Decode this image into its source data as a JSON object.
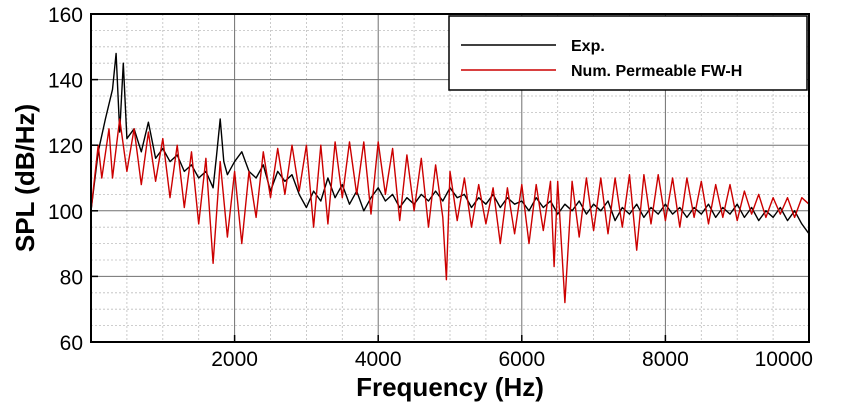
{
  "chart_data": {
    "type": "line",
    "title": "",
    "xlabel": "Frequency (Hz)",
    "ylabel": "SPL (dB/Hz)",
    "xlim": [
      0,
      10000
    ],
    "ylim": [
      60,
      160
    ],
    "x_ticks": [
      2000,
      4000,
      6000,
      8000,
      10000
    ],
    "y_ticks": [
      60,
      80,
      100,
      120,
      140,
      160
    ],
    "grid": true,
    "minor_grid": true,
    "legend_position": "top-right",
    "series": [
      {
        "name": "Exp.",
        "color": "#000000",
        "points": [
          [
            0,
            100
          ],
          [
            100,
            118
          ],
          [
            200,
            128
          ],
          [
            300,
            137
          ],
          [
            350,
            148
          ],
          [
            400,
            124
          ],
          [
            450,
            145
          ],
          [
            500,
            122
          ],
          [
            600,
            125
          ],
          [
            700,
            118
          ],
          [
            800,
            127
          ],
          [
            900,
            116
          ],
          [
            1000,
            119
          ],
          [
            1100,
            115
          ],
          [
            1200,
            117
          ],
          [
            1300,
            112
          ],
          [
            1400,
            114
          ],
          [
            1500,
            110
          ],
          [
            1600,
            112
          ],
          [
            1700,
            107
          ],
          [
            1750,
            117
          ],
          [
            1800,
            128
          ],
          [
            1850,
            115
          ],
          [
            1900,
            111
          ],
          [
            2000,
            115
          ],
          [
            2100,
            118
          ],
          [
            2200,
            112
          ],
          [
            2300,
            110
          ],
          [
            2400,
            114
          ],
          [
            2500,
            106
          ],
          [
            2600,
            112
          ],
          [
            2700,
            109
          ],
          [
            2800,
            111
          ],
          [
            2900,
            105
          ],
          [
            3000,
            101
          ],
          [
            3100,
            106
          ],
          [
            3200,
            103
          ],
          [
            3300,
            110
          ],
          [
            3400,
            104
          ],
          [
            3500,
            108
          ],
          [
            3600,
            102
          ],
          [
            3700,
            106
          ],
          [
            3800,
            100
          ],
          [
            3900,
            104
          ],
          [
            4000,
            107
          ],
          [
            4100,
            103
          ],
          [
            4200,
            105
          ],
          [
            4300,
            101
          ],
          [
            4400,
            104
          ],
          [
            4500,
            102
          ],
          [
            4600,
            105
          ],
          [
            4700,
            103
          ],
          [
            4800,
            106
          ],
          [
            4900,
            103
          ],
          [
            5000,
            107
          ],
          [
            5100,
            104
          ],
          [
            5200,
            105
          ],
          [
            5300,
            101
          ],
          [
            5400,
            104
          ],
          [
            5500,
            102
          ],
          [
            5600,
            105
          ],
          [
            5700,
            101
          ],
          [
            5800,
            104
          ],
          [
            5900,
            102
          ],
          [
            6000,
            103
          ],
          [
            6100,
            100
          ],
          [
            6200,
            104
          ],
          [
            6300,
            101
          ],
          [
            6400,
            103
          ],
          [
            6500,
            99
          ],
          [
            6600,
            102
          ],
          [
            6700,
            100
          ],
          [
            6800,
            103
          ],
          [
            6900,
            99
          ],
          [
            7000,
            102
          ],
          [
            7100,
            100
          ],
          [
            7200,
            103
          ],
          [
            7300,
            97
          ],
          [
            7400,
            101
          ],
          [
            7500,
            99
          ],
          [
            7600,
            102
          ],
          [
            7700,
            98
          ],
          [
            7800,
            101
          ],
          [
            7900,
            99
          ],
          [
            8000,
            102
          ],
          [
            8100,
            99
          ],
          [
            8200,
            101
          ],
          [
            8300,
            98
          ],
          [
            8400,
            101
          ],
          [
            8500,
            99
          ],
          [
            8600,
            102
          ],
          [
            8700,
            98
          ],
          [
            8800,
            101
          ],
          [
            8900,
            99
          ],
          [
            9000,
            102
          ],
          [
            9100,
            98
          ],
          [
            9200,
            101
          ],
          [
            9300,
            97
          ],
          [
            9400,
            100
          ],
          [
            9500,
            98
          ],
          [
            9600,
            101
          ],
          [
            9700,
            97
          ],
          [
            9800,
            100
          ],
          [
            9900,
            96
          ],
          [
            10000,
            93
          ]
        ]
      },
      {
        "name": "Num. Permeable FW-H",
        "color": "#cc0000",
        "points": [
          [
            0,
            100
          ],
          [
            100,
            120
          ],
          [
            150,
            110
          ],
          [
            250,
            125
          ],
          [
            300,
            110
          ],
          [
            400,
            128
          ],
          [
            500,
            112
          ],
          [
            600,
            125
          ],
          [
            700,
            108
          ],
          [
            800,
            124
          ],
          [
            900,
            109
          ],
          [
            1000,
            122
          ],
          [
            1100,
            104
          ],
          [
            1200,
            120
          ],
          [
            1300,
            101
          ],
          [
            1400,
            118
          ],
          [
            1500,
            96
          ],
          [
            1600,
            116
          ],
          [
            1700,
            84
          ],
          [
            1800,
            115
          ],
          [
            1900,
            92
          ],
          [
            2000,
            112
          ],
          [
            2100,
            90
          ],
          [
            2200,
            112
          ],
          [
            2300,
            98
          ],
          [
            2400,
            118
          ],
          [
            2500,
            104
          ],
          [
            2600,
            119
          ],
          [
            2700,
            105
          ],
          [
            2800,
            120
          ],
          [
            2900,
            106
          ],
          [
            3000,
            120
          ],
          [
            3100,
            95
          ],
          [
            3200,
            120
          ],
          [
            3300,
            96
          ],
          [
            3400,
            121
          ],
          [
            3500,
            104
          ],
          [
            3600,
            121
          ],
          [
            3700,
            105
          ],
          [
            3800,
            121
          ],
          [
            3900,
            99
          ],
          [
            4000,
            121
          ],
          [
            4100,
            105
          ],
          [
            4200,
            119
          ],
          [
            4300,
            97
          ],
          [
            4400,
            117
          ],
          [
            4500,
            100
          ],
          [
            4600,
            116
          ],
          [
            4700,
            95
          ],
          [
            4800,
            114
          ],
          [
            4900,
            98
          ],
          [
            4950,
            79
          ],
          [
            5000,
            112
          ],
          [
            5100,
            97
          ],
          [
            5200,
            110
          ],
          [
            5300,
            95
          ],
          [
            5400,
            108
          ],
          [
            5500,
            96
          ],
          [
            5600,
            107
          ],
          [
            5700,
            90
          ],
          [
            5800,
            107
          ],
          [
            5900,
            93
          ],
          [
            6000,
            108
          ],
          [
            6100,
            90
          ],
          [
            6200,
            108
          ],
          [
            6300,
            94
          ],
          [
            6400,
            109
          ],
          [
            6450,
            83
          ],
          [
            6500,
            109
          ],
          [
            6600,
            72
          ],
          [
            6700,
            109
          ],
          [
            6800,
            92
          ],
          [
            6900,
            110
          ],
          [
            7000,
            94
          ],
          [
            7100,
            110
          ],
          [
            7200,
            93
          ],
          [
            7300,
            110
          ],
          [
            7400,
            95
          ],
          [
            7500,
            111
          ],
          [
            7600,
            88
          ],
          [
            7700,
            111
          ],
          [
            7800,
            96
          ],
          [
            7900,
            111
          ],
          [
            8000,
            97
          ],
          [
            8100,
            110
          ],
          [
            8200,
            95
          ],
          [
            8300,
            110
          ],
          [
            8400,
            98
          ],
          [
            8500,
            109
          ],
          [
            8600,
            96
          ],
          [
            8700,
            108
          ],
          [
            8800,
            98
          ],
          [
            8900,
            108
          ],
          [
            9000,
            97
          ],
          [
            9100,
            106
          ],
          [
            9200,
            99
          ],
          [
            9300,
            105
          ],
          [
            9400,
            98
          ],
          [
            9500,
            104
          ],
          [
            9600,
            99
          ],
          [
            9700,
            104
          ],
          [
            9800,
            98
          ],
          [
            9900,
            104
          ],
          [
            10000,
            102
          ]
        ]
      }
    ]
  }
}
